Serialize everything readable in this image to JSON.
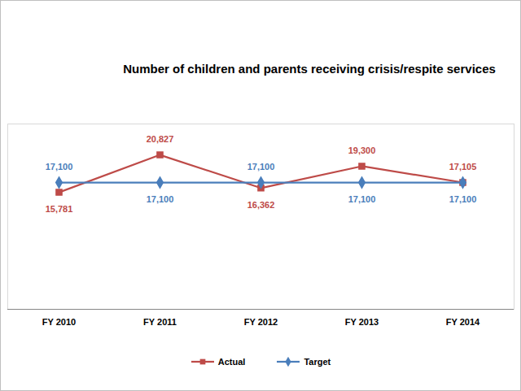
{
  "chart_data": {
    "type": "line",
    "title": "Number of children and parents receiving crisis/respite services",
    "categories": [
      "FY 2010",
      "FY 2011",
      "FY 2012",
      "FY 2013",
      "FY 2014"
    ],
    "series": [
      {
        "name": "Actual",
        "color": "#be4b48",
        "marker": "square",
        "values": [
          15781,
          20827,
          16362,
          19300,
          17105
        ],
        "value_labels": [
          "15,781",
          "20,827",
          "16,362",
          "19,300",
          "17,105"
        ]
      },
      {
        "name": "Target",
        "color": "#4a7ebb",
        "marker": "diamond",
        "values": [
          17100,
          17100,
          17100,
          17100,
          17100
        ],
        "value_labels": [
          "17,100",
          "17,100",
          "17,100",
          "17,100",
          "17,100"
        ]
      }
    ],
    "ylim": [
      0,
      25000
    ],
    "data_labels": true,
    "tick_labels": "x",
    "grid": false,
    "legend": "bottom"
  }
}
